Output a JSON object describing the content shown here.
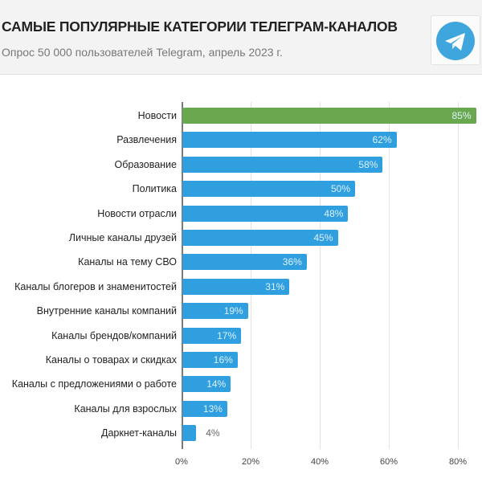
{
  "header": {
    "title": "САМЫЕ ПОПУЛЯРНЫЕ КАТЕГОРИИ ТЕЛЕГРАМ-КАНАЛОВ",
    "subtitle": "Опрос 50 000 пользователей Telegram, апрель 2023 г.",
    "logo_icon": "telegram-icon",
    "logo_color": "#3ea6dc"
  },
  "colors": {
    "highlight_bar": "#6aa84f",
    "bar": "#2f9fe0",
    "label_inside": "#dff1fb",
    "label_outside": "#666666"
  },
  "chart_data": {
    "type": "bar",
    "orientation": "horizontal",
    "title": "САМЫЕ ПОПУЛЯРНЫЕ КАТЕГОРИИ ТЕЛЕГРАМ-КАНАЛОВ",
    "subtitle": "Опрос 50 000 пользователей Telegram, апрель 2023 г.",
    "xlabel": "",
    "ylabel": "",
    "xlim": [
      0,
      85
    ],
    "x_ticks": [
      "0%",
      "20%",
      "40%",
      "60%",
      "80%"
    ],
    "grid": true,
    "legend": null,
    "categories": [
      "Новости",
      "Развлечения",
      "Образование",
      "Политика",
      "Новости отрасли",
      "Личные каналы друзей",
      "Каналы на тему СВО",
      "Каналы блогеров и знаменитостей",
      "Внутренние каналы компаний",
      "Каналы брендов/компаний",
      "Каналы о товарах и скидках",
      "Каналы с предложениями о работе",
      "Каналы для взрослых",
      "Даркнет-каналы"
    ],
    "values": [
      85,
      62,
      58,
      50,
      48,
      45,
      36,
      31,
      19,
      17,
      16,
      14,
      13,
      4
    ],
    "value_labels": [
      "85%",
      "62%",
      "58%",
      "50%",
      "48%",
      "45%",
      "36%",
      "31%",
      "19%",
      "17%",
      "16%",
      "14%",
      "13%",
      "4%"
    ],
    "highlighted_index": 0
  }
}
